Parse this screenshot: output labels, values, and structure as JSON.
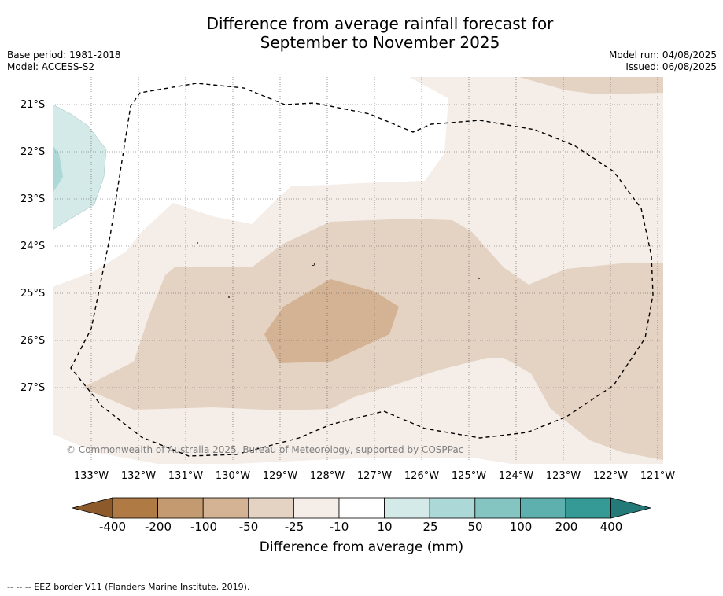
{
  "title_line1": "Difference from average rainfall forecast for",
  "title_line2": "September to November 2025",
  "meta_left": {
    "base_period": "Base period: 1981-2018",
    "model": "Model: ACCESS-S2"
  },
  "meta_right": {
    "model_run": "Model run: 04/08/2025",
    "issued": "Issued: 06/08/2025"
  },
  "latitudes": [
    "21°S",
    "22°S",
    "23°S",
    "24°S",
    "25°S",
    "26°S",
    "27°S"
  ],
  "longitudes": [
    "133°W",
    "132°W",
    "131°W",
    "130°W",
    "129°W",
    "128°W",
    "127°W",
    "126°W",
    "125°W",
    "124°W",
    "123°W",
    "122°W",
    "121°W"
  ],
  "copyright": "© Commonwealth of Australia 2025, Bureau of Meteorology, supported by COSPPac",
  "colorbar": {
    "ticks": [
      "-400",
      "-200",
      "-100",
      "-50",
      "-25",
      "-10",
      "10",
      "25",
      "50",
      "100",
      "200",
      "400"
    ],
    "colors": [
      "#8c5a2b",
      "#b07a45",
      "#c49a70",
      "#d4b394",
      "#e4d2c2",
      "#f4ede8",
      "#ffffff",
      "#d4eae9",
      "#acd9d7",
      "#84c4c1",
      "#5db0ad",
      "#359a96",
      "#237a78"
    ],
    "title": "Difference from average (mm)"
  },
  "footnote": "-- -- -- EEZ border V11 (Flanders Marine Institute, 2019)."
}
